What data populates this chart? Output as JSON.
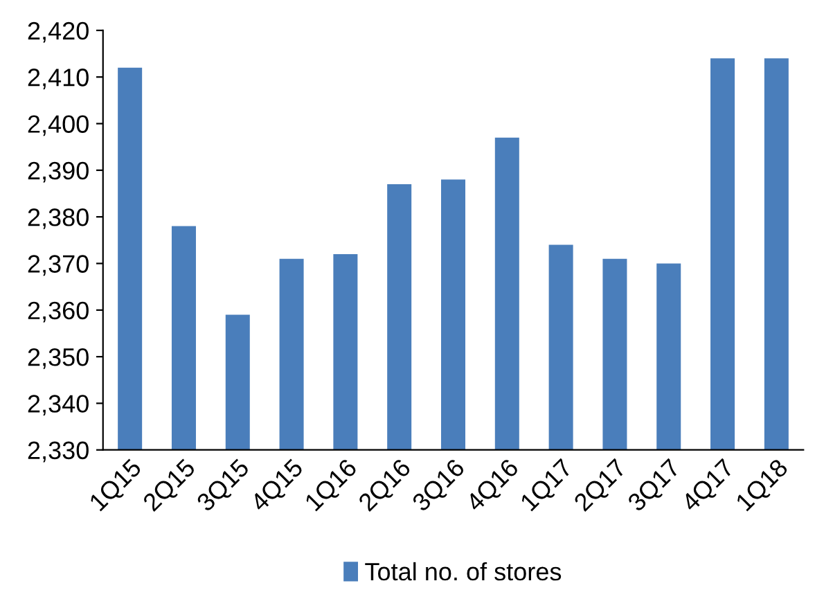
{
  "chart_data": {
    "type": "bar",
    "categories": [
      "1Q15",
      "2Q15",
      "3Q15",
      "4Q15",
      "1Q16",
      "2Q16",
      "3Q16",
      "4Q16",
      "1Q17",
      "2Q17",
      "3Q17",
      "4Q17",
      "1Q18"
    ],
    "series": [
      {
        "name": "Total no. of stores",
        "color": "#4a7ebb",
        "values": [
          2412,
          2378,
          2359,
          2371,
          2372,
          2387,
          2388,
          2397,
          2374,
          2371,
          2370,
          2414,
          2414
        ]
      }
    ],
    "ylim": [
      2330,
      2420
    ],
    "yticks": [
      {
        "value": 2330,
        "label": "2,330"
      },
      {
        "value": 2340,
        "label": "2,340"
      },
      {
        "value": 2350,
        "label": "2,350"
      },
      {
        "value": 2360,
        "label": "2,360"
      },
      {
        "value": 2370,
        "label": "2,370"
      },
      {
        "value": 2380,
        "label": "2,380"
      },
      {
        "value": 2390,
        "label": "2,390"
      },
      {
        "value": 2400,
        "label": "2,400"
      },
      {
        "value": 2410,
        "label": "2,410"
      },
      {
        "value": 2420,
        "label": "2,420"
      }
    ],
    "grid": false,
    "legend": "bottom"
  }
}
